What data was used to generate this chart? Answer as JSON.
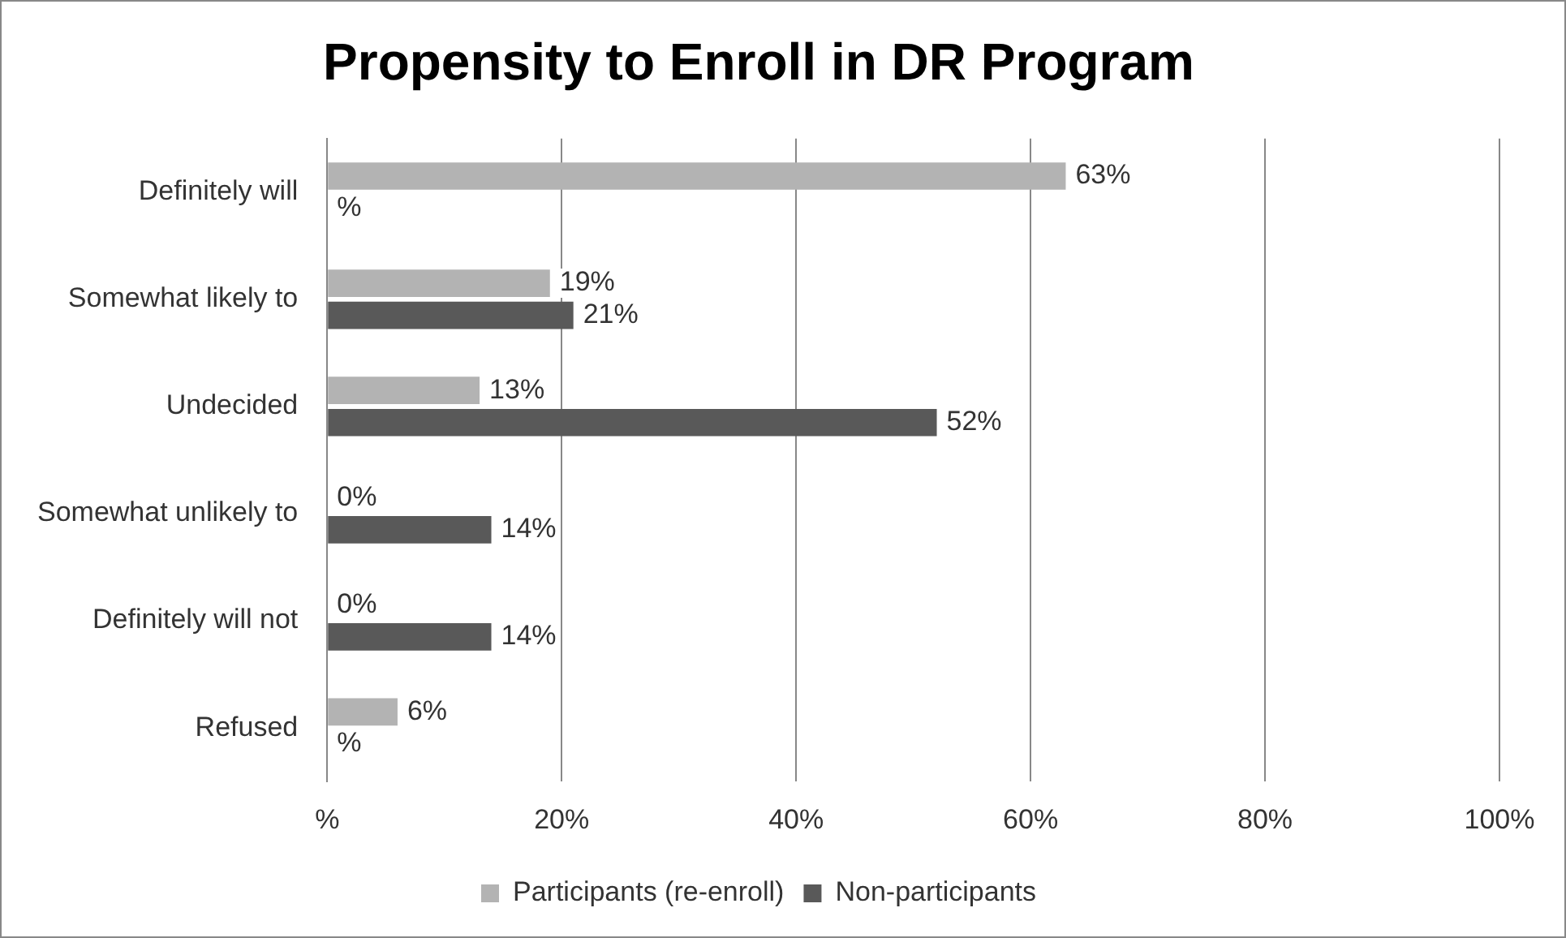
{
  "chart_data": {
    "type": "bar",
    "orientation": "horizontal",
    "title": "Propensity to Enroll in DR Program",
    "categories": [
      "Definitely will",
      "Somewhat likely to",
      "Undecided",
      "Somewhat unlikely to",
      "Definitely will not",
      "Refused"
    ],
    "series": [
      {
        "name": "Participants (re-enroll)",
        "color": "#b3b3b3",
        "values": [
          63,
          19,
          13,
          0,
          0,
          6
        ],
        "value_labels": [
          "63%",
          "19%",
          "13%",
          "0%",
          "0%",
          "6%"
        ]
      },
      {
        "name": "Non-participants",
        "color": "#595959",
        "values": [
          0,
          21,
          52,
          14,
          14,
          0
        ],
        "value_labels": [
          "%",
          "21%",
          "52%",
          "14%",
          "14%",
          "%"
        ]
      }
    ],
    "xlim": [
      0,
      100
    ],
    "xticks": [
      {
        "value": 0,
        "label": "%"
      },
      {
        "value": 20,
        "label": "20%"
      },
      {
        "value": 40,
        "label": "40%"
      },
      {
        "value": 60,
        "label": "60%"
      },
      {
        "value": 80,
        "label": "80%"
      },
      {
        "value": 100,
        "label": "100%"
      }
    ],
    "grid": "x",
    "legend": "bottom"
  }
}
